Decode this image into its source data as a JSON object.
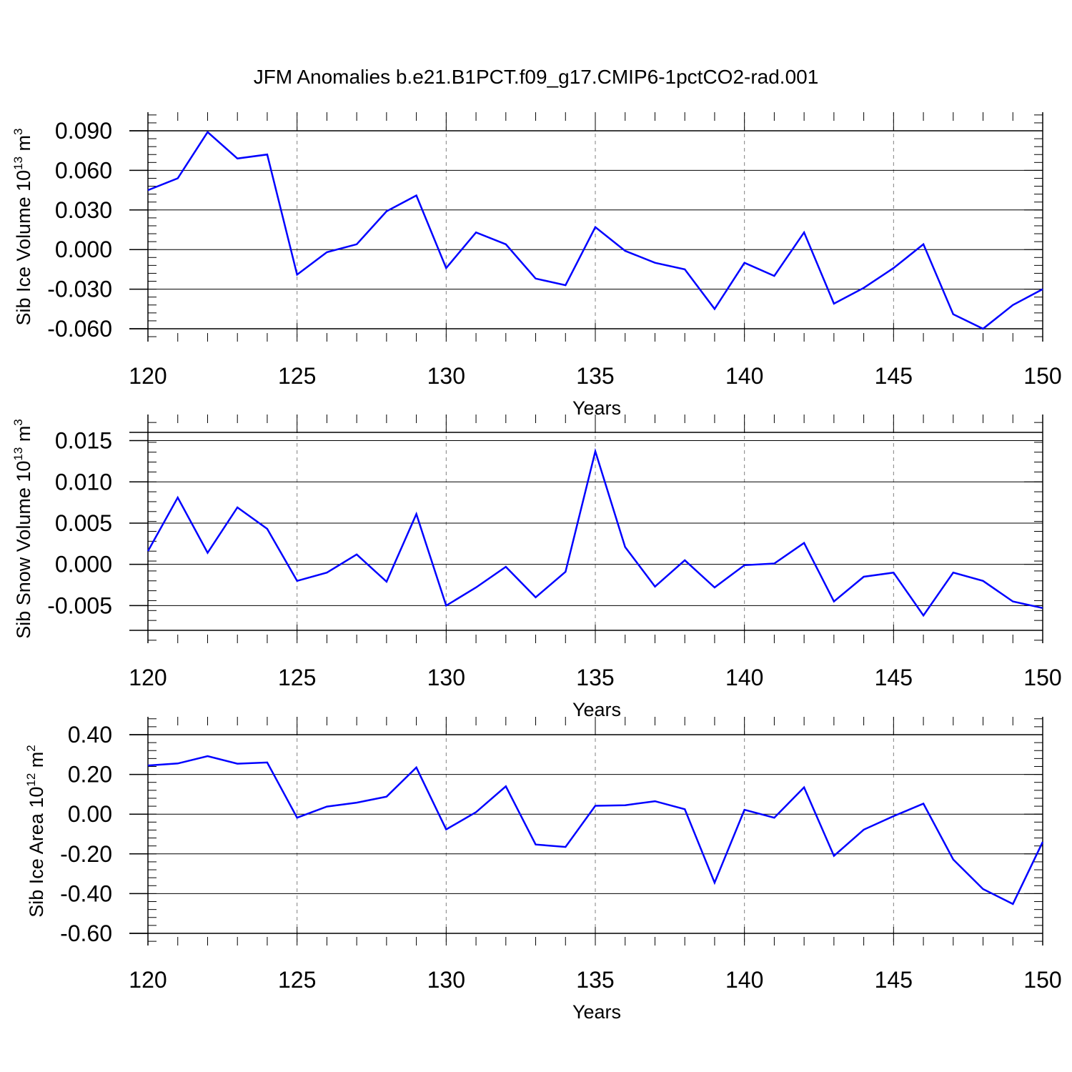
{
  "title": "JFM Anomalies b.e21.B1PCT.f09_g17.CMIP6-1pctCO2-rad.001",
  "colors": {
    "line": "#0000ff",
    "axis": "#000000",
    "grid": "#808080"
  },
  "chart_data": [
    {
      "type": "line",
      "name": "sib-ice-volume",
      "ylabel": "Sib Ice Volume 10",
      "ylabel_exp": "13",
      "ylabel_unit": " m",
      "ylabel_unit_exp": "3",
      "xlabel": "Years",
      "xlim": [
        120,
        150
      ],
      "ylim": [
        -0.06,
        0.09
      ],
      "yticks": [
        "0.090",
        "0.060",
        "0.030",
        "0.000",
        "-0.030",
        "-0.060"
      ],
      "xticks": [
        "120",
        "125",
        "130",
        "135",
        "140",
        "145",
        "150"
      ],
      "x": [
        120,
        121,
        122,
        123,
        124,
        125,
        126,
        127,
        128,
        129,
        130,
        131,
        132,
        133,
        134,
        135,
        136,
        137,
        138,
        139,
        140,
        141,
        142,
        143,
        144,
        145,
        146,
        147,
        148,
        149,
        150
      ],
      "values": [
        0.045,
        0.054,
        0.089,
        0.069,
        0.072,
        -0.019,
        -0.002,
        0.004,
        0.029,
        0.041,
        -0.014,
        0.013,
        0.004,
        -0.022,
        -0.027,
        0.017,
        -0.001,
        -0.01,
        -0.015,
        -0.045,
        -0.01,
        -0.02,
        0.013,
        -0.041,
        -0.029,
        -0.014,
        0.004,
        -0.049,
        -0.06,
        -0.042,
        -0.03
      ]
    },
    {
      "type": "line",
      "name": "sib-snow-volume",
      "ylabel": "Sib Snow Volume 10",
      "ylabel_exp": "13",
      "ylabel_unit": " m",
      "ylabel_unit_exp": "3",
      "xlabel": "Years",
      "xlim": [
        120,
        150
      ],
      "ylim": [
        -0.008,
        0.016
      ],
      "yticks": [
        "0.015",
        "0.010",
        "0.005",
        "0.000",
        "-0.005"
      ],
      "xticks": [
        "120",
        "125",
        "130",
        "135",
        "140",
        "145",
        "150"
      ],
      "x": [
        120,
        121,
        122,
        123,
        124,
        125,
        126,
        127,
        128,
        129,
        130,
        131,
        132,
        133,
        134,
        135,
        136,
        137,
        138,
        139,
        140,
        141,
        142,
        143,
        144,
        145,
        146,
        147,
        148,
        149,
        150
      ],
      "values": [
        0.0016,
        0.0081,
        0.0014,
        0.0069,
        0.0043,
        -0.002,
        -0.001,
        0.0012,
        -0.0021,
        0.0061,
        -0.005,
        -0.0028,
        -0.0003,
        -0.004,
        -0.0009,
        0.0137,
        0.0021,
        -0.0027,
        0.0005,
        -0.0028,
        -0.0001,
        0.0001,
        0.0026,
        -0.0045,
        -0.0015,
        -0.001,
        -0.0062,
        -0.001,
        -0.002,
        -0.0045,
        -0.0053
      ]
    },
    {
      "type": "line",
      "name": "sib-ice-area",
      "ylabel": "Sib Ice Area 10",
      "ylabel_exp": "12",
      "ylabel_unit": " m",
      "ylabel_unit_exp": "2",
      "xlabel": "Years",
      "xlim": [
        120,
        150
      ],
      "ylim": [
        -0.6,
        0.4
      ],
      "yticks": [
        "0.40",
        "0.20",
        "0.00",
        "-0.20",
        "-0.40",
        "-0.60"
      ],
      "xticks": [
        "120",
        "125",
        "130",
        "135",
        "140",
        "145",
        "150"
      ],
      "x": [
        120,
        121,
        122,
        123,
        124,
        125,
        126,
        127,
        128,
        129,
        130,
        131,
        132,
        133,
        134,
        135,
        136,
        137,
        138,
        139,
        140,
        141,
        142,
        143,
        144,
        145,
        146,
        147,
        148,
        149,
        150
      ],
      "values": [
        0.245,
        0.255,
        0.292,
        0.254,
        0.26,
        -0.018,
        0.038,
        0.058,
        0.088,
        0.235,
        -0.077,
        0.01,
        0.14,
        -0.153,
        -0.165,
        0.042,
        0.045,
        0.065,
        0.025,
        -0.345,
        0.022,
        -0.018,
        0.135,
        -0.21,
        -0.078,
        -0.01,
        0.053,
        -0.228,
        -0.377,
        -0.452,
        -0.14
      ]
    }
  ]
}
